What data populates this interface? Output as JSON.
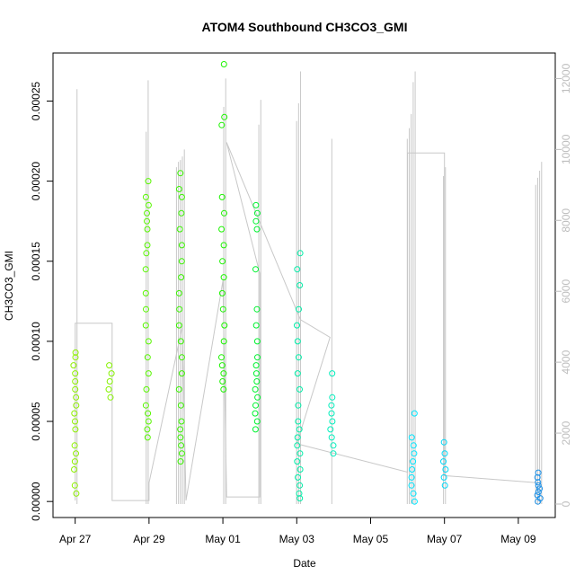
{
  "chart_data": {
    "type": "scatter",
    "title": "ATOM4 Southbound CH3CO3_GMI",
    "xlabel": "Date",
    "ylabel": "CH3CO3_GMI",
    "x_ticks": [
      "Apr 27",
      "Apr 29",
      "May 01",
      "May 03",
      "May 05",
      "May 07",
      "May 09"
    ],
    "x_tick_days": [
      0,
      2,
      4,
      6,
      8,
      10,
      12
    ],
    "xlim_days": [
      -0.6,
      13.0
    ],
    "ylim": [
      -1e-05,
      0.00028
    ],
    "y_ticks": [
      "0.00000",
      "0.00005",
      "0.00010",
      "0.00015",
      "0.00020",
      "0.00025"
    ],
    "y_tick_values": [
      0,
      5e-05,
      0.0001,
      0.00015,
      0.0002,
      0.00025
    ],
    "y2_ticks": [
      "0",
      "2000",
      "4000",
      "6000",
      "8000",
      "10000",
      "12000"
    ],
    "y2_tick_values": [
      0,
      2000,
      4000,
      6000,
      8000,
      10000,
      12000
    ],
    "y2lim": [
      -380,
      12720
    ],
    "grid": false,
    "marker": "open-circle",
    "secondary_series_color": "#c8c8c8",
    "color_scale": "hue by time: yellow-green to blue",
    "series": [
      {
        "day": 0.0,
        "color": "#8ef000",
        "values": [
          2e-05,
          3e-05,
          4.5e-05,
          5e-05,
          5.5e-05,
          6e-05,
          6.5e-05,
          7e-05,
          7.5e-05,
          8e-05,
          8.5e-05,
          9e-05,
          9.3e-05,
          1e-05,
          5e-06,
          3.5e-05,
          2.5e-05
        ]
      },
      {
        "day": 0.95,
        "color": "#86f200",
        "values": [
          6.5e-05,
          7e-05,
          7.5e-05,
          8e-05,
          8.5e-05
        ]
      },
      {
        "day": 1.95,
        "color": "#58f600",
        "values": [
          4e-05,
          4.5e-05,
          5e-05,
          5.5e-05,
          6e-05,
          7e-05,
          8e-05,
          9e-05,
          0.0001,
          0.00011,
          0.00012,
          0.00013,
          0.000145,
          0.000155,
          0.00016,
          0.00017,
          0.000175,
          0.00018,
          0.000185,
          0.00019,
          0.0002
        ]
      },
      {
        "day": 2.85,
        "color": "#3af400",
        "values": [
          2.5e-05,
          3e-05,
          3.5e-05,
          4e-05,
          4.5e-05,
          5e-05,
          6e-05,
          7e-05,
          8e-05,
          9e-05,
          0.0001,
          0.00011,
          0.00012,
          0.00013,
          0.00014,
          0.00015,
          0.00016,
          0.00017,
          0.00018,
          0.00019,
          0.000195,
          0.000205
        ]
      },
      {
        "day": 4.0,
        "color": "#1cf400",
        "values": [
          7e-05,
          7.5e-05,
          8e-05,
          8.5e-05,
          9e-05,
          0.0001,
          0.00011,
          0.00012,
          0.00013,
          0.00014,
          0.00015,
          0.00016,
          0.00017,
          0.00018,
          0.00019,
          0.000235,
          0.00024,
          0.000273
        ]
      },
      {
        "day": 4.9,
        "color": "#00f230",
        "values": [
          4.5e-05,
          5e-05,
          5.5e-05,
          6e-05,
          6.5e-05,
          7e-05,
          7.5e-05,
          8e-05,
          8.5e-05,
          9e-05,
          0.0001,
          0.00011,
          0.00012,
          0.000145,
          0.00017,
          0.000175,
          0.00018,
          0.000185
        ]
      },
      {
        "day": 6.05,
        "color": "#00eea8",
        "values": [
          2e-06,
          5e-06,
          1e-05,
          1.5e-05,
          2e-05,
          2.5e-05,
          3e-05,
          3.5e-05,
          4e-05,
          4.5e-05,
          5e-05,
          6e-05,
          7e-05,
          8e-05,
          9e-05,
          0.0001,
          0.00011,
          0.00012,
          0.000135,
          0.000145,
          0.000155
        ]
      },
      {
        "day": 6.95,
        "color": "#00eebc",
        "values": [
          3e-05,
          3.5e-05,
          4e-05,
          4.5e-05,
          5e-05,
          5.5e-05,
          6e-05,
          6.5e-05,
          8e-05
        ]
      },
      {
        "day": 9.15,
        "color": "#00e6ff",
        "values": [
          0.0,
          5e-06,
          1e-05,
          1.5e-05,
          2e-05,
          2.5e-05,
          3e-05,
          3.5e-05,
          4e-05,
          5.5e-05
        ]
      },
      {
        "day": 10.0,
        "color": "#00d8f8",
        "values": [
          1e-05,
          1.5e-05,
          2e-05,
          2.5e-05,
          3e-05,
          3.7e-05
        ]
      },
      {
        "day": 12.55,
        "color": "#1a90e8",
        "values": [
          0.0,
          2e-06,
          4e-06,
          6e-06,
          8e-06,
          1e-05,
          1.2e-05,
          1.5e-05,
          1.8e-05
        ]
      }
    ],
    "secondary_series": {
      "name": "",
      "spikes": [
        {
          "day": 0.05,
          "values": [
            11700
          ]
        },
        {
          "day": 1.95,
          "values": [
            10500,
            11950
          ]
        },
        {
          "day": 2.85,
          "values": [
            9500,
            9650,
            9700,
            9800,
            10000
          ]
        },
        {
          "day": 4.05,
          "values": [
            11200,
            12000
          ]
        },
        {
          "day": 5.0,
          "values": [
            10700,
            11400
          ]
        },
        {
          "day": 6.05,
          "values": [
            10800,
            11300,
            12200
          ]
        },
        {
          "day": 6.95,
          "values": [
            10300
          ]
        },
        {
          "day": 9.1,
          "values": [
            10300,
            10600,
            11000,
            11900,
            12200
          ]
        },
        {
          "day": 10.0,
          "values": [
            9250,
            9500
          ]
        },
        {
          "day": 12.55,
          "values": [
            9000,
            9200,
            9400,
            9650
          ]
        }
      ],
      "track": [
        [
          0,
          100
        ],
        [
          0,
          5100
        ],
        [
          1,
          5100
        ],
        [
          1,
          100
        ],
        [
          2,
          100
        ],
        [
          2,
          600
        ],
        [
          2.9,
          5000
        ],
        [
          3,
          100
        ],
        [
          4.0,
          6300
        ],
        [
          4.1,
          200
        ],
        [
          5.0,
          200
        ],
        [
          5.0,
          6500
        ],
        [
          4.1,
          10200
        ],
        [
          6.1,
          5200
        ],
        [
          6.9,
          4700
        ],
        [
          6.0,
          1700
        ],
        [
          9.0,
          900
        ],
        [
          9.0,
          9900
        ],
        [
          10.0,
          9900
        ],
        [
          10.0,
          800
        ],
        [
          12.5,
          600
        ]
      ]
    }
  }
}
